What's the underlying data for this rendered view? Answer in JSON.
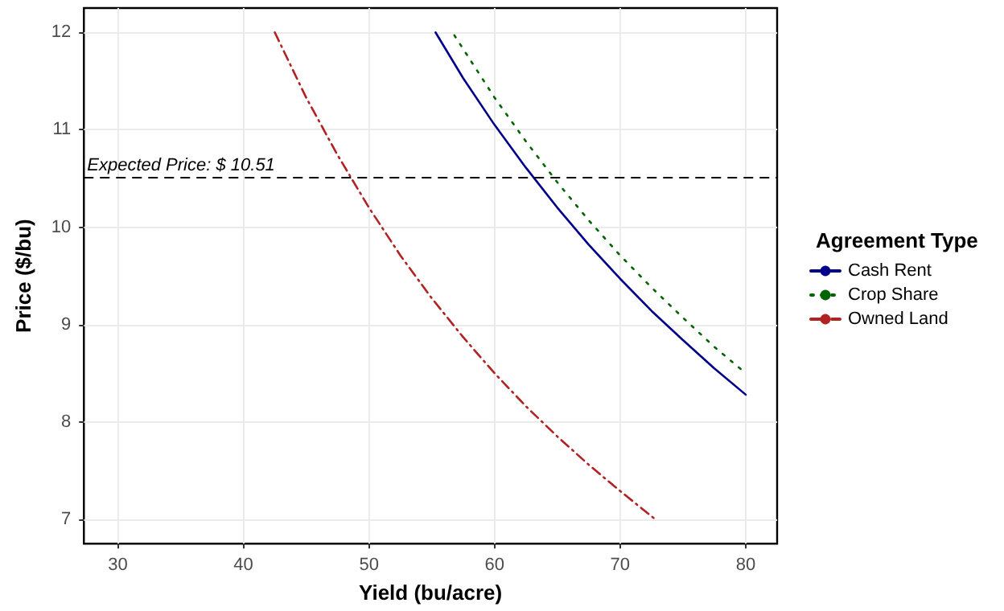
{
  "chart_data": {
    "type": "line",
    "xlabel": "Yield (bu/acre)",
    "ylabel": "Price ($/bu)",
    "legend_title": "Agreement Type",
    "xlim": [
      27.3,
      82.5
    ],
    "xticks": [
      30,
      40,
      50,
      60,
      70,
      80
    ],
    "ylim": [
      6.75,
      12.25
    ],
    "yticks": [
      7,
      8,
      9,
      10,
      11,
      12
    ],
    "grid": true,
    "legend": "right",
    "marker": "none",
    "series": [
      {
        "name": "Cash Rent",
        "color": "#00008b",
        "line_style": "solid",
        "x": [
          55.3,
          57.5,
          60,
          62.5,
          65,
          67.5,
          70,
          72.5,
          75,
          77.5,
          80
        ],
        "values": [
          12.0,
          11.53,
          11.05,
          10.61,
          10.2,
          9.82,
          9.47,
          9.14,
          8.84,
          8.55,
          8.28
        ]
      },
      {
        "name": "Crop Share",
        "color": "#006400",
        "line_style": "dotted",
        "x": [
          56.8,
          60,
          62.5,
          65,
          67.5,
          70,
          72.5,
          75,
          77.5,
          80
        ],
        "values": [
          11.97,
          11.33,
          10.88,
          10.46,
          10.07,
          9.71,
          9.38,
          9.07,
          8.77,
          8.5
        ]
      },
      {
        "name": "Owned Land",
        "color": "#b22222",
        "line_style": "dashed",
        "x": [
          42.5,
          45,
          47.5,
          50,
          52.5,
          55,
          57.5,
          60,
          62.5,
          65,
          67.5,
          70,
          72.8
        ],
        "values": [
          12.0,
          11.33,
          10.74,
          10.2,
          9.71,
          9.27,
          8.87,
          8.5,
          8.16,
          7.85,
          7.56,
          7.29,
          7.0
        ]
      }
    ],
    "ref_lines": [
      {
        "axis": "y",
        "value": 10.51,
        "label": "Expected Price: $ 10.51",
        "color": "#000000",
        "line_style": "dashed"
      }
    ]
  }
}
